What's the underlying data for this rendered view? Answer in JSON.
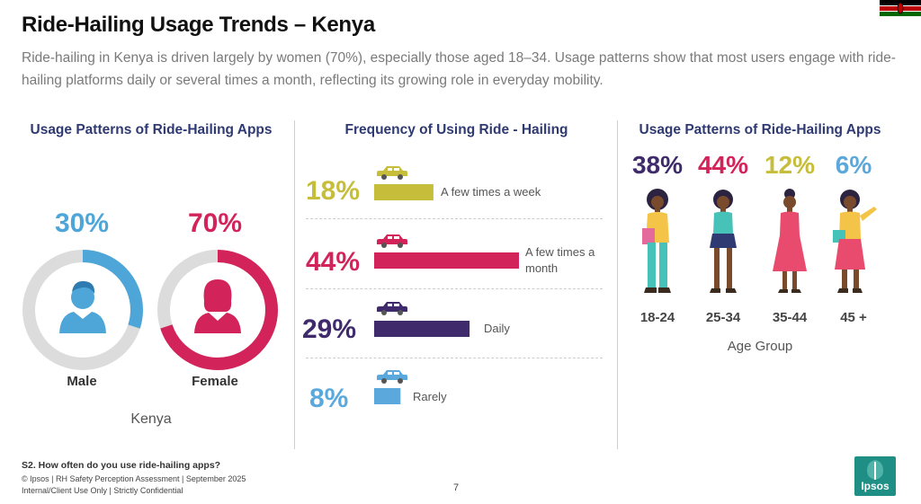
{
  "title": "Ride-Hailing Usage Trends – Kenya",
  "subtitle": "Ride-hailing in Kenya is driven largely by women (70%), especially those aged 18–34. Usage patterns show that most users engage with ride-hailing platforms daily or several times a month, reflecting its growing role in everyday mobility.",
  "colors": {
    "male": "#4ea6d8",
    "female": "#d2245a",
    "ring_bg": "#dcdcdc",
    "weekly": "#c6bd3a",
    "monthly": "#d2245a",
    "daily": "#3f2a6b",
    "rarely": "#5aa8dc",
    "navy": "#2f3a72"
  },
  "chart_data": [
    {
      "type": "pie",
      "title": "Usage Patterns of Ride-Hailing Apps",
      "categories": [
        "Male",
        "Female"
      ],
      "values": [
        30,
        70
      ],
      "labels": [
        "30%",
        "70%"
      ],
      "caption": "Kenya"
    },
    {
      "type": "bar",
      "title": "Frequency of Using Ride - Hailing",
      "categories": [
        "A few times a week",
        "A few times a month",
        "Daily",
        "Rarely"
      ],
      "values": [
        18,
        44,
        29,
        8
      ],
      "labels": [
        "18%",
        "44%",
        "29%",
        "8%"
      ],
      "ylim": [
        0,
        44
      ]
    },
    {
      "type": "bar",
      "title": "Usage Patterns of Ride-Hailing Apps",
      "categories": [
        "18-24",
        "25-34",
        "35-44",
        "45 +"
      ],
      "values": [
        38,
        44,
        12,
        6
      ],
      "labels": [
        "38%",
        "44%",
        "12%",
        "6%"
      ],
      "xlabel": "Age Group"
    }
  ],
  "footer": {
    "question": "S2. How often do you use ride-hailing apps?",
    "copyright": "© Ipsos | RH Safety Perception Assessment | September 2025",
    "confidential": "Internal/Client Use Only | Strictly Confidential",
    "page": "7",
    "logo_text": "Ipsos"
  }
}
